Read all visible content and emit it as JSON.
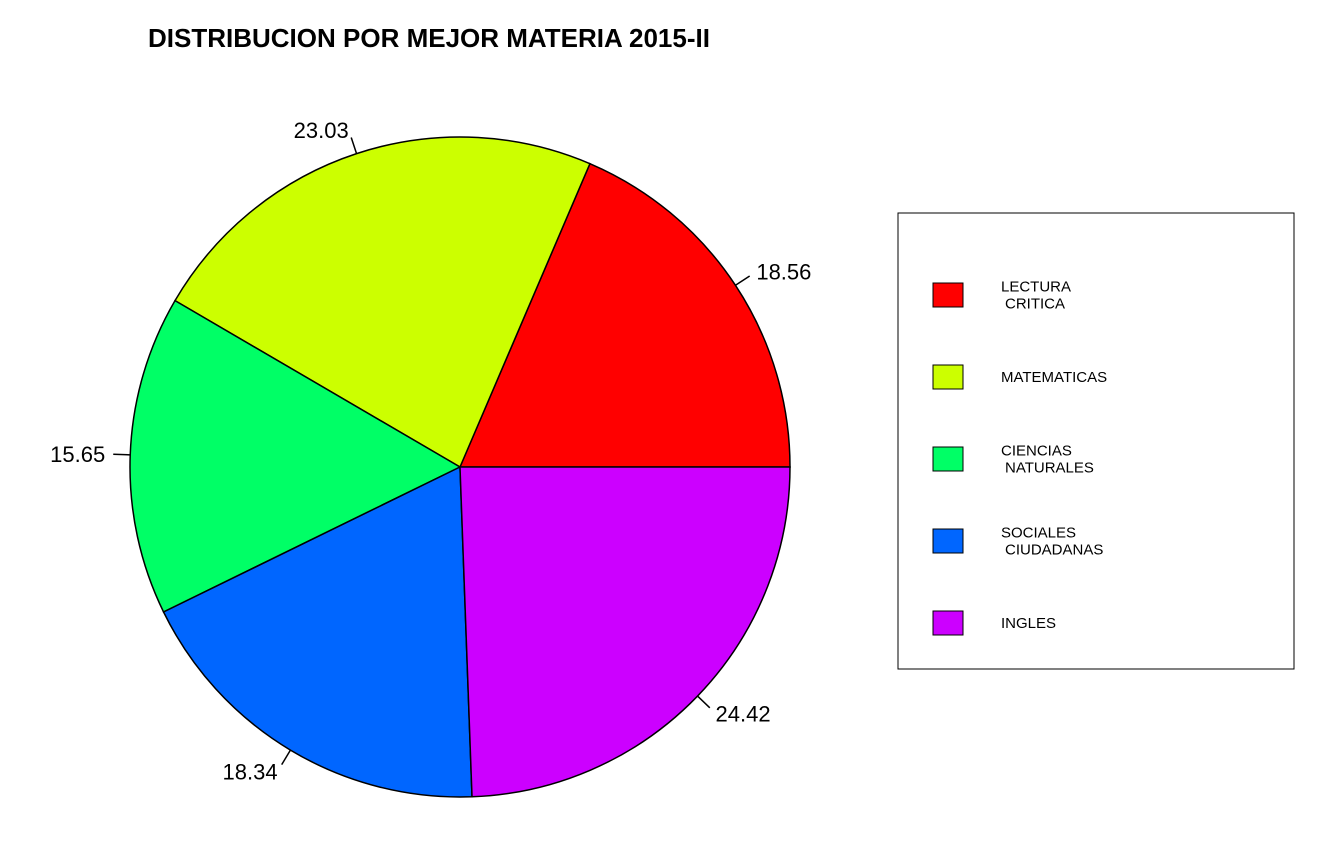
{
  "chart_data": {
    "type": "pie",
    "title": "DISTRIBUCION POR MEJOR MATERIA 2015-II",
    "slices": [
      {
        "label": "LECTURA CRITICA",
        "label_lines": [
          "LECTURA",
          "CRITICA"
        ],
        "value": 18.56,
        "value_label": "18.56",
        "color": "#ff0000"
      },
      {
        "label": "MATEMATICAS",
        "label_lines": [
          "MATEMATICAS"
        ],
        "value": 23.03,
        "value_label": "23.03",
        "color": "#ccff00"
      },
      {
        "label": "CIENCIAS NATURALES",
        "label_lines": [
          "CIENCIAS",
          "NATURALES"
        ],
        "value": 15.65,
        "value_label": "15.65",
        "color": "#00ff66"
      },
      {
        "label": "SOCIALES CIUDADANAS",
        "label_lines": [
          "SOCIALES",
          "CIUDADANAS"
        ],
        "value": 18.34,
        "value_label": "18.34",
        "color": "#0066ff"
      },
      {
        "label": "INGLES",
        "label_lines": [
          "INGLES"
        ],
        "value": 24.42,
        "value_label": "24.42",
        "color": "#cc00ff"
      }
    ],
    "start_angle_deg": 0,
    "direction": "counterclockwise",
    "legend_position": "right"
  }
}
